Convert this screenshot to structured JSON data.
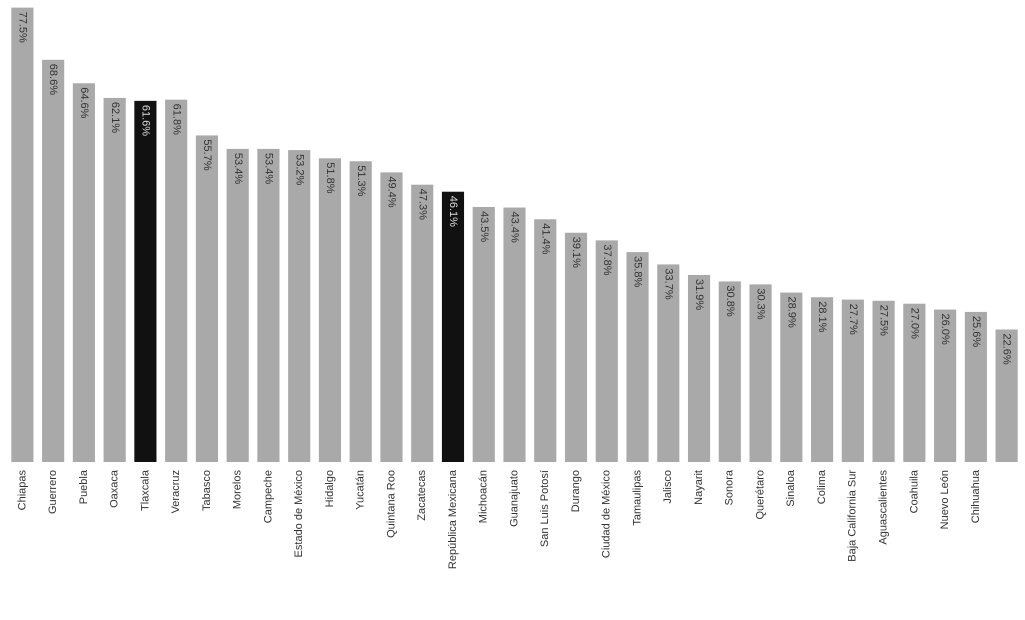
{
  "chart_data": {
    "type": "bar",
    "categories": [
      "Chiapas",
      "Guerrero",
      "Puebla",
      "Oaxaca",
      "Tlaxcala",
      "Veracruz",
      "Tabasco",
      "Morelos",
      "Campeche",
      "Estado de México",
      "Hidalgo",
      "Yucatán",
      "Quintana Roo",
      "Zacatecas",
      "República Mexicana",
      "Michoacán",
      "Guanajuato",
      "San Luis Potosí",
      "Durango",
      "Ciudad de México",
      "Tamaulipas",
      "Jalisco",
      "Nayarit",
      "Sonora",
      "Querétaro",
      "Sinaloa",
      "Colima",
      "Baja California Sur",
      "Aguascalientes",
      "Coahuila",
      "Nuevo León",
      "Chihuahua",
      null
    ],
    "values": [
      77.5,
      68.6,
      64.6,
      62.1,
      61.6,
      61.8,
      55.7,
      53.4,
      53.4,
      53.2,
      51.8,
      51.3,
      49.4,
      47.3,
      46.1,
      43.5,
      43.4,
      41.4,
      39.1,
      37.8,
      35.8,
      33.7,
      31.9,
      30.8,
      30.3,
      28.9,
      28.1,
      27.7,
      27.5,
      27.0,
      26.0,
      25.6,
      22.6
    ],
    "value_labels": [
      "77.5%",
      "68.6%",
      "64.6%",
      "62.1%",
      "61.6%",
      "61.8%",
      "55.7%",
      "53.4%",
      "53.4%",
      "53.2%",
      "51.8%",
      "51.3%",
      "49.4%",
      "47.3%",
      "46.1%",
      "43.5%",
      "43.4%",
      "41.4%",
      "39.1%",
      "37.8%",
      "35.8%",
      "33.7%",
      "31.9%",
      "30.8%",
      "30.3%",
      "28.9%",
      "28.1%",
      "27.7%",
      "27.5%",
      "27.0%",
      "26.0%",
      "25.6%",
      "22.6%"
    ],
    "color": "#a9a9a9",
    "highlight_color": "#111111",
    "highlight": [
      "Tlaxcala",
      "República Mexicana"
    ],
    "ylim": [
      0,
      78.8
    ]
  }
}
